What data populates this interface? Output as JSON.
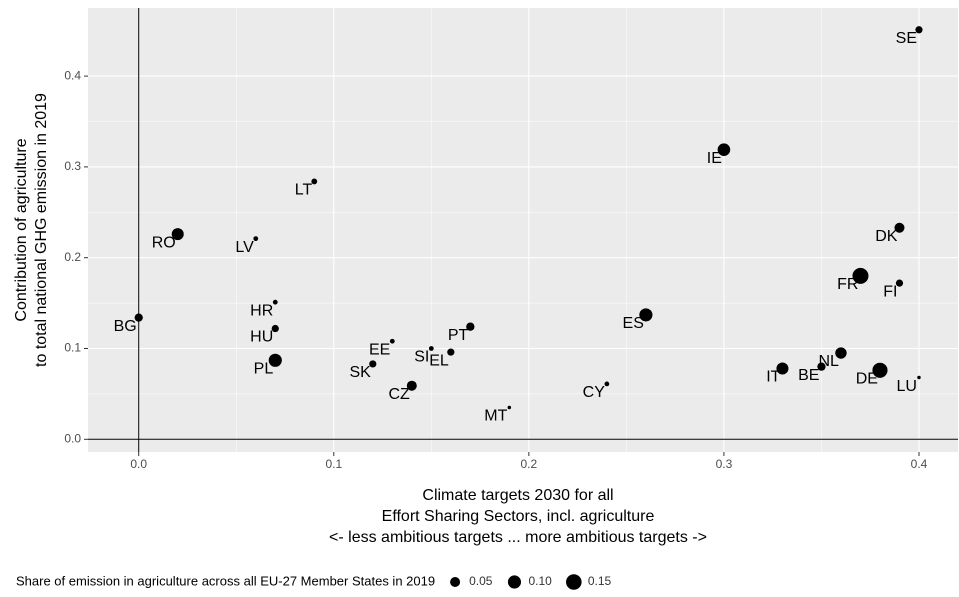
{
  "chart_data": {
    "type": "bubble",
    "x_title": [
      "Climate targets 2030 for all",
      "Effort Sharing Sectors, incl. agriculture",
      "<- less ambitious targets ... more ambitious targets ->"
    ],
    "y_title": [
      "Contribution of agriculture",
      "to total national GHG emission in 2019"
    ],
    "labels": [
      "SE",
      "IE",
      "LT",
      "RO",
      "LV",
      "BG",
      "HR",
      "HU",
      "PL",
      "EE",
      "SK",
      "SI",
      "EL",
      "PT",
      "CZ",
      "MT",
      "CY",
      "ES",
      "IT",
      "BE",
      "NL",
      "DE",
      "LU",
      "DK",
      "FR",
      "FI"
    ],
    "x": [
      0.4,
      0.3,
      0.09,
      0.02,
      0.06,
      0.0,
      0.07,
      0.07,
      0.07,
      0.13,
      0.12,
      0.15,
      0.16,
      0.17,
      0.14,
      0.19,
      0.24,
      0.26,
      0.33,
      0.35,
      0.36,
      0.38,
      0.4,
      0.39,
      0.37,
      0.39
    ],
    "values": [
      0.451,
      0.319,
      0.284,
      0.226,
      0.221,
      0.134,
      0.151,
      0.122,
      0.087,
      0.108,
      0.083,
      0.1,
      0.096,
      0.124,
      0.059,
      0.035,
      0.061,
      0.137,
      0.078,
      0.08,
      0.095,
      0.076,
      0.068,
      0.233,
      0.18,
      0.172
    ],
    "sizes": [
      0.02,
      0.09,
      0.01,
      0.08,
      0.005,
      0.03,
      0.005,
      0.02,
      0.1,
      0.005,
      0.02,
      0.005,
      0.02,
      0.03,
      0.05,
      0.001,
      0.005,
      0.1,
      0.08,
      0.03,
      0.07,
      0.14,
      0.001,
      0.05,
      0.16,
      0.02
    ],
    "color": "#000000",
    "xlim": [
      -0.026,
      0.42
    ],
    "ylim": [
      -0.014,
      0.475
    ],
    "xticks": [
      {
        "value": 0,
        "label": "0.0"
      },
      0.1,
      0.2,
      0.3,
      0.4
    ],
    "yticks": [
      {
        "value": 0,
        "label": "0.0"
      },
      0.1,
      0.2,
      0.3,
      0.4
    ],
    "vline": 0,
    "hline": 0,
    "grid": true,
    "size_legend": {
      "title": "Share of emission in agriculture across all EU-27 Member States in 2019",
      "values": [
        0.05,
        {
          "value": 0.1,
          "label": "0.10"
        },
        0.15
      ]
    }
  }
}
